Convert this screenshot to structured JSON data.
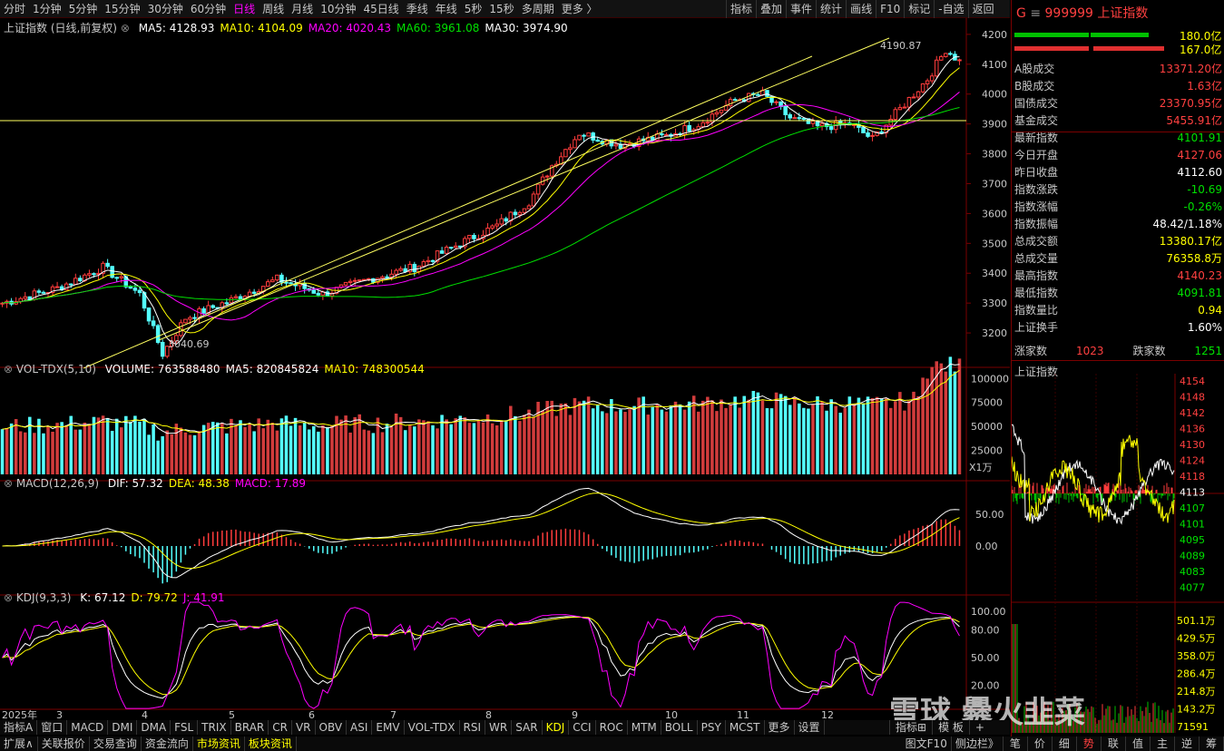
{
  "toolbar": {
    "periods": [
      "分时",
      "1分钟",
      "5分钟",
      "15分钟",
      "30分钟",
      "60分钟",
      "日线",
      "周线",
      "月线",
      "10分钟",
      "45日线",
      "季线",
      "年线",
      "5秒",
      "15秒",
      "多周期",
      "更多 〉"
    ],
    "active_period": "日线",
    "actions": [
      "指标",
      "叠加",
      "事件",
      "统计",
      "画线",
      "F10",
      "标记",
      "-自选",
      "返回"
    ]
  },
  "main_chart": {
    "title": "上证指数 (日线,前复权)",
    "ma_labels": [
      {
        "text": "MA5: 4128.93",
        "color": "#ffffff"
      },
      {
        "text": "MA10: 4104.09",
        "color": "#ffff00"
      },
      {
        "text": "MA20: 4020.43",
        "color": "#ff00ff"
      },
      {
        "text": "MA60: 3961.08",
        "color": "#00e000"
      },
      {
        "text": "MA30: 3974.90",
        "color": "#ffffff"
      }
    ],
    "high_label": "4190.87",
    "low_label": "3040.69",
    "y_ticks": [
      "4200",
      "4100",
      "4000",
      "3900",
      "3800",
      "3700",
      "3600",
      "3500",
      "3400",
      "3300",
      "3200"
    ],
    "y_range": [
      3100,
      4230
    ]
  },
  "volume_chart": {
    "title": "VOL-TDX(5,10)",
    "labels": [
      {
        "text": "VOLUME: 763588480",
        "color": "#ffffff"
      },
      {
        "text": "MA5: 820845824",
        "color": "#ffffff"
      },
      {
        "text": "MA10: 748300544",
        "color": "#ffff00"
      }
    ],
    "y_ticks": [
      "100000",
      "75000",
      "50000",
      "25000"
    ],
    "unit": "X1万"
  },
  "macd_chart": {
    "title": "MACD(12,26,9)",
    "labels": [
      {
        "text": "DIF: 57.32",
        "color": "#ffffff"
      },
      {
        "text": "DEA: 48.38",
        "color": "#ffff00"
      },
      {
        "text": "MACD: 17.89",
        "color": "#ff00ff"
      }
    ],
    "y_ticks": [
      "50.00",
      "0.00"
    ]
  },
  "kdj_chart": {
    "title": "KDJ(9,3,3)",
    "labels": [
      {
        "text": "K: 67.12",
        "color": "#ffffff"
      },
      {
        "text": "D: 79.72",
        "color": "#ffff00"
      },
      {
        "text": "J: 41.91",
        "color": "#ff00ff"
      }
    ],
    "y_ticks": [
      "100.00",
      "80.00",
      "50.00",
      "20.00"
    ]
  },
  "x_axis": [
    "2025年",
    "3",
    "4",
    "5",
    "6",
    "7",
    "8",
    "9",
    "10",
    "11",
    "12"
  ],
  "right_panel": {
    "code": "999999",
    "name": "上证指数",
    "bar_values": [
      "180.0亿",
      "167.0亿"
    ],
    "stats": [
      {
        "label": "A股成交",
        "value": "13371.20亿",
        "color": "#ff4040"
      },
      {
        "label": "B股成交",
        "value": "1.63亿",
        "color": "#ff4040"
      },
      {
        "label": "国债成交",
        "value": "23370.95亿",
        "color": "#ff4040"
      },
      {
        "label": "基金成交",
        "value": "5455.91亿",
        "color": "#ff4040"
      },
      {
        "label": "最新指数",
        "value": "4101.91",
        "color": "#00e000"
      },
      {
        "label": "今日开盘",
        "value": "4127.06",
        "color": "#ff4040"
      },
      {
        "label": "昨日收盘",
        "value": "4112.60",
        "color": "#ffffff"
      },
      {
        "label": "指数涨跌",
        "value": "-10.69",
        "color": "#00e000"
      },
      {
        "label": "指数涨幅",
        "value": "-0.26%",
        "color": "#00e000"
      },
      {
        "label": "指数振幅",
        "value": "48.42/1.18%",
        "color": "#ffffff"
      },
      {
        "label": "总成交额",
        "value": "13380.17亿",
        "color": "#ffff00"
      },
      {
        "label": "总成交量",
        "value": "76358.8万",
        "color": "#ffff00"
      },
      {
        "label": "最高指数",
        "value": "4140.23",
        "color": "#ff4040"
      },
      {
        "label": "最低指数",
        "value": "4091.81",
        "color": "#00e000"
      },
      {
        "label": "指数量比",
        "value": "0.94",
        "color": "#ffff00"
      },
      {
        "label": "上证换手",
        "value": "1.60%",
        "color": "#ffffff"
      }
    ],
    "up_label": "涨家数",
    "up_value": "1023",
    "down_label": "跌家数",
    "down_value": "1251",
    "intraday_title": "上证指数",
    "intraday_ticks": [
      "4154",
      "4148",
      "4142",
      "4136",
      "4130",
      "4124",
      "4118",
      "4113",
      "4107",
      "4101",
      "4095",
      "4089",
      "4083",
      "4077"
    ],
    "vol_ticks": [
      "501.1万",
      "429.5万",
      "358.0万",
      "286.4万",
      "214.8万",
      "143.2万",
      "71591"
    ]
  },
  "bottom_tabs": [
    "指标A",
    "窗口",
    "MACD",
    "DMI",
    "DMA",
    "FSL",
    "TRIX",
    "BRAR",
    "CR",
    "VR",
    "OBV",
    "ASI",
    "EMV",
    "VOL-TDX",
    "RSI",
    "WR",
    "SAR",
    "KDJ",
    "CCI",
    "ROC",
    "MTM",
    "BOLL",
    "PSY",
    "MCST",
    "更多",
    "设置"
  ],
  "active_tab": "KDJ",
  "bottom_right_tabs": [
    "指标⊞",
    "模 板",
    "+"
  ],
  "status_bar": [
    "扩展∧",
    "关联报价",
    "交易查询",
    "资金流向",
    "市场资讯",
    "板块资讯"
  ],
  "status_right": [
    "图文F10",
    "侧边栏》",
    "笔",
    "价",
    "细",
    "势",
    "联",
    "值",
    "主",
    "逆",
    "筹"
  ],
  "watermark": "雪球  爨火韭菜"
}
